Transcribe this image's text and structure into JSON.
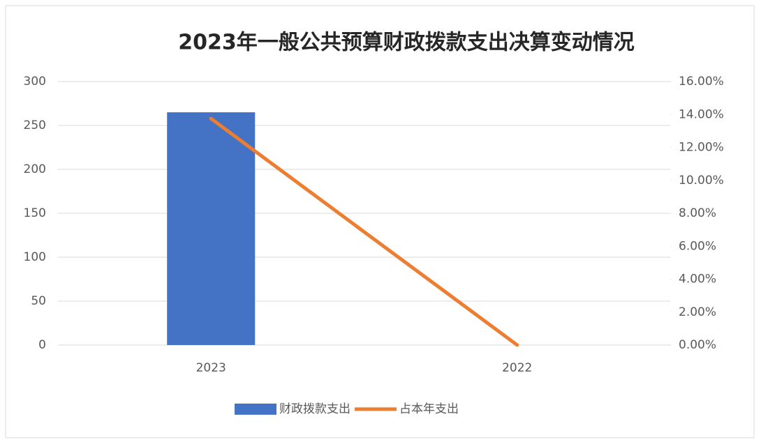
{
  "chart_data": {
    "type": "bar",
    "title": "2023年一般公共预算财政拨款支出决算变动情况",
    "categories": [
      "2023",
      "2022"
    ],
    "series": [
      {
        "name": "财政拨款支出",
        "color": "#4472c4",
        "values": [
          265,
          0
        ]
      },
      {
        "name": "占本年支出",
        "color": "#ed7d31",
        "type": "line",
        "axis": "y2",
        "values": [
          13.75,
          0
        ]
      }
    ],
    "ylim": [
      0,
      300
    ],
    "yticks": [
      0,
      50,
      100,
      150,
      200,
      250,
      300
    ],
    "y2lim": [
      0,
      16
    ],
    "y2ticks": [
      {
        "value": 0,
        "label": "0.00%"
      },
      {
        "value": 2,
        "label": "2.00%"
      },
      {
        "value": 4,
        "label": "4.00%"
      },
      {
        "value": 6,
        "label": "6.00%"
      },
      {
        "value": 8,
        "label": "8.00%"
      },
      {
        "value": 10,
        "label": "10.00%"
      },
      {
        "value": 12,
        "label": "12.00%"
      },
      {
        "value": 14,
        "label": "14.00%"
      },
      {
        "value": 16,
        "label": "16.00%"
      }
    ],
    "grid": true,
    "legend": "bottom"
  }
}
